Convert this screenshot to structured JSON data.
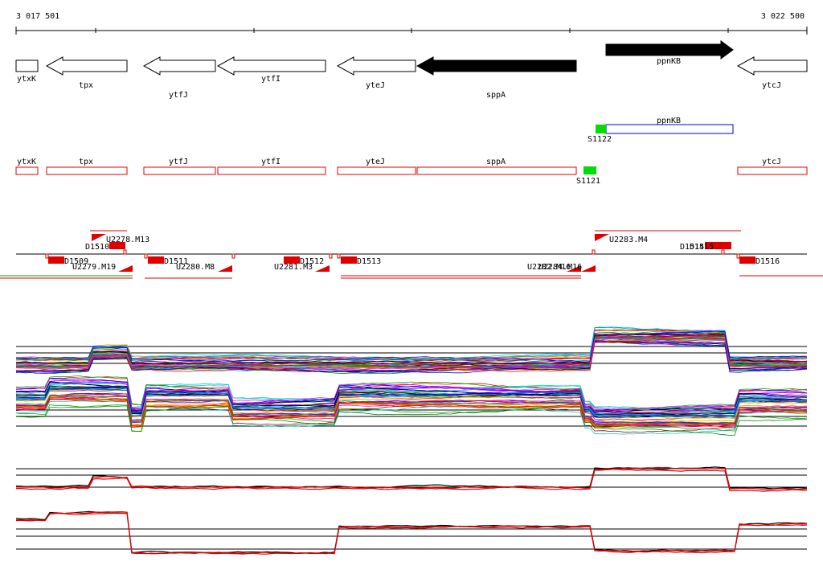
{
  "coords": {
    "start": "3 017 501",
    "end": "3 022 500"
  },
  "colors": {
    "axis": "#000000",
    "annotation": "#e00000",
    "promoter": "#00dd00",
    "ppnkb_box": "#0000cc",
    "contig_a": "#00aa00",
    "contig_b": "#e00000"
  },
  "genes_top": [
    {
      "label": "ytxK",
      "dir": "box",
      "filled": false
    },
    {
      "label": "tpx",
      "dir": "left",
      "filled": false
    },
    {
      "label": "ytfJ",
      "dir": "left",
      "filled": false
    },
    {
      "label": "ytfI",
      "dir": "left",
      "filled": false
    },
    {
      "label": "yteJ",
      "dir": "left",
      "filled": false
    },
    {
      "label": "sppA",
      "dir": "left",
      "filled": true
    },
    {
      "label": "ppnKB",
      "dir": "right",
      "filled": true
    },
    {
      "label": "ytcJ",
      "dir": "left",
      "filled": false
    }
  ],
  "transcript_ppnkb": {
    "label": "ppnKB",
    "promoter": "S1122"
  },
  "genes_annot": [
    {
      "label": "ytxK"
    },
    {
      "label": "tpx"
    },
    {
      "label": "ytfJ"
    },
    {
      "label": "ytfI"
    },
    {
      "label": "yteJ"
    },
    {
      "label": "sppA"
    },
    {
      "label": "ytcJ"
    }
  ],
  "promoter_s1121": {
    "label": "S1121"
  },
  "upshifts": [
    "U2278.M13",
    "U2283.M4"
  ],
  "downshift_labels": [
    "U2279.M19",
    "U2280.M8",
    "U2281.M3",
    "U2282.M16"
  ],
  "dmarks": [
    "D1509",
    "D1510",
    "D1511",
    "D1512",
    "D1513",
    "D1514",
    "D1515",
    "D1516"
  ]
}
